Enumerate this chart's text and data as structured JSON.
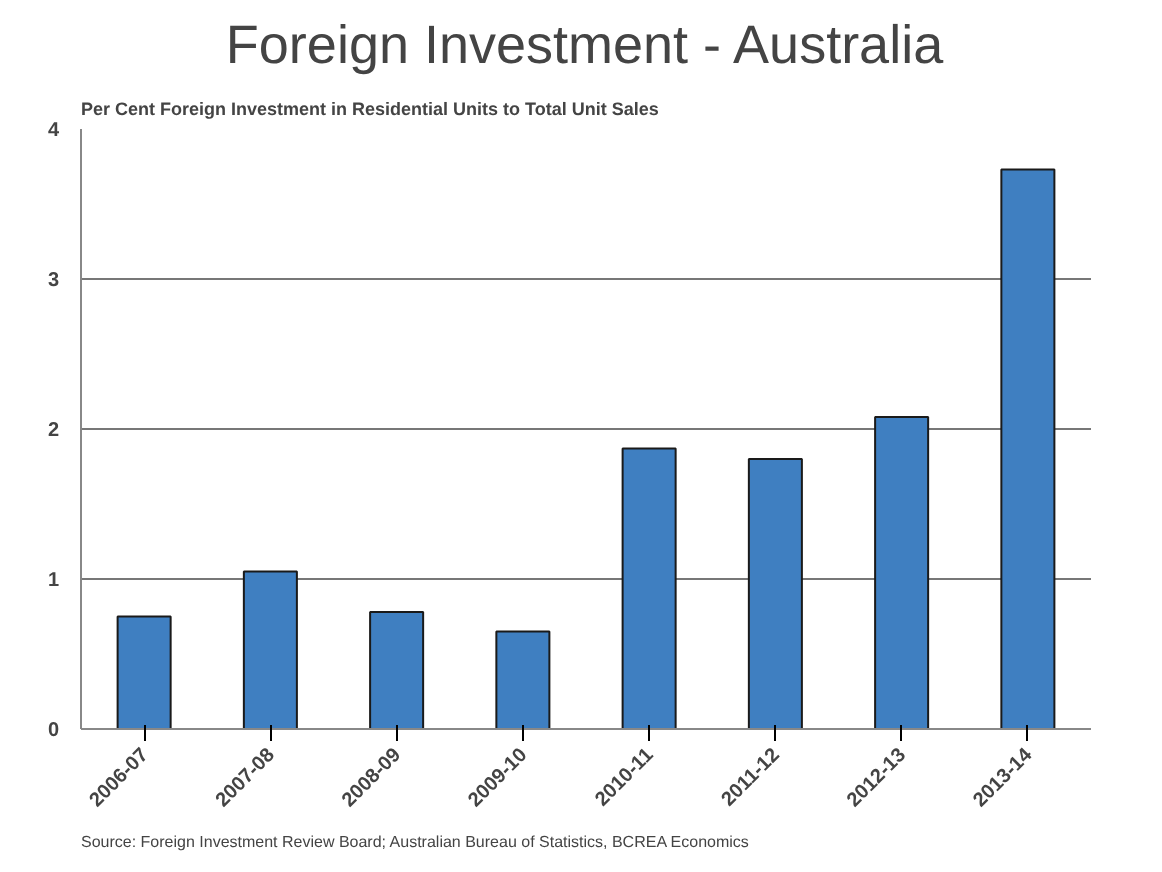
{
  "chart_data": {
    "type": "bar",
    "title": "Foreign Investment - Australia",
    "subtitle": "Per Cent Foreign Investment in Residential Units to Total Unit Sales",
    "categories": [
      "2006-07",
      "2007-08",
      "2008-09",
      "2009-10",
      "2010-11",
      "2011-12",
      "2012-13",
      "2013-14"
    ],
    "values": [
      0.75,
      1.05,
      0.78,
      0.65,
      1.87,
      1.8,
      2.08,
      3.73
    ],
    "color": "#3f7fc1",
    "ylim": [
      0,
      4
    ],
    "yticks": [
      0,
      1,
      2,
      3,
      4
    ],
    "grid": "y",
    "annotations": [
      "Source: Foreign Investment Review Board; Australian Bureau of Statistics, BCREA Economics"
    ]
  }
}
